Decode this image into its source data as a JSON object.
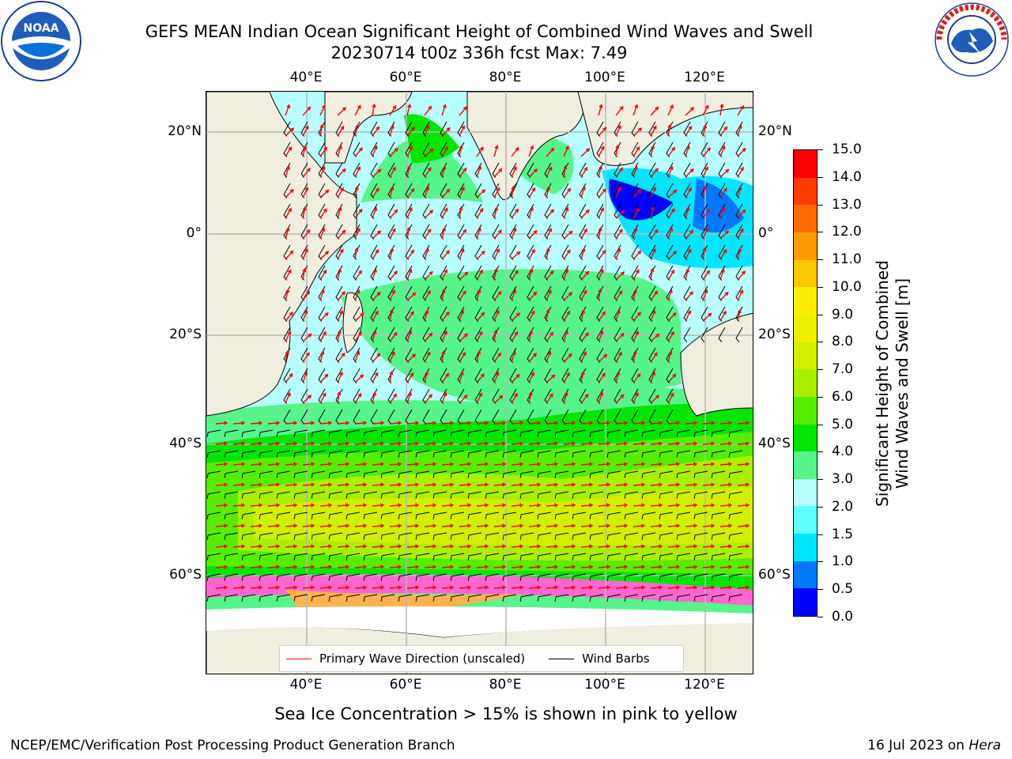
{
  "title": {
    "line1": "GEFS MEAN Indian Ocean Significant Height of Combined Wind Waves and Swell",
    "line2": "20230714 t00z 336h fcst   Max: 7.49"
  },
  "logos": {
    "left": {
      "name": "noaa-logo",
      "text": "NOAA"
    },
    "right": {
      "name": "nws-logo",
      "text": "NATIONAL WEATHER SERVICE"
    }
  },
  "map": {
    "lon_ticks": [
      "40°E",
      "60°E",
      "80°E",
      "100°E",
      "120°E"
    ],
    "lat_ticks": [
      "20°N",
      "0°",
      "20°S",
      "40°S",
      "60°S"
    ],
    "colors": {
      "land": "#efeedf",
      "ice_pink": "#ff66d0",
      "ice_orange": "#ffb24d",
      "wave_arrow": "#ff0000",
      "barb": "#000000",
      "grid": "#b8b8b8"
    }
  },
  "legend": {
    "items": [
      {
        "label": "Primary Wave Direction (unscaled)",
        "color": "#ff0000"
      },
      {
        "label": "Wind Barbs",
        "color": "#000000"
      }
    ]
  },
  "colorbar": {
    "title_line1": "Significant Height of Combined",
    "title_line2": "Wind Waves and Swell [m]",
    "ticks": [
      "0.0",
      "0.5",
      "1.0",
      "1.5",
      "2.0",
      "3.0",
      "4.0",
      "5.0",
      "6.0",
      "7.0",
      "8.0",
      "9.0",
      "10.0",
      "11.0",
      "12.0",
      "13.0",
      "14.0",
      "15.0"
    ],
    "colors": [
      "#0000ff",
      "#0078ff",
      "#00e6ff",
      "#5effff",
      "#b8ffff",
      "#55f58a",
      "#00e600",
      "#55ee00",
      "#a8f000",
      "#d0f000",
      "#eef000",
      "#ffee00",
      "#ffc800",
      "#ff9b00",
      "#ff6a00",
      "#ff3c00",
      "#ff0000"
    ]
  },
  "subcaption": "Sea Ice Concentration > 15% is shown in pink to yellow",
  "footer": {
    "left": "NCEP/EMC/Verification Post Processing Product Generation Branch",
    "right_prefix": "16 Jul 2023 on ",
    "right_machine": "Hera"
  }
}
